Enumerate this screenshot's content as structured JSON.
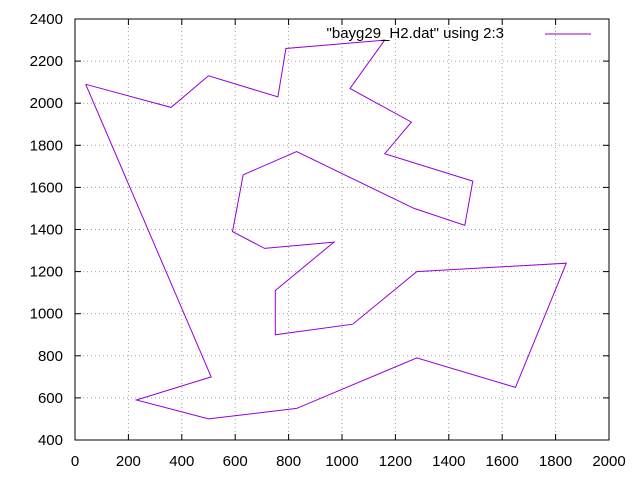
{
  "chart_data": {
    "type": "line",
    "title": "",
    "xlabel": "",
    "ylabel": "",
    "xlim": [
      0,
      2000
    ],
    "ylim": [
      400,
      2400
    ],
    "x_ticks": [
      0,
      200,
      400,
      600,
      800,
      1000,
      1200,
      1400,
      1600,
      1800,
      2000
    ],
    "y_ticks": [
      400,
      600,
      800,
      1000,
      1200,
      1400,
      1600,
      1800,
      2000,
      2200,
      2400
    ],
    "x_tick_labels": [
      "0",
      "200",
      "400",
      "600",
      "800",
      "1000",
      "1200",
      "1400",
      "1600",
      "1800",
      "2000"
    ],
    "y_tick_labels": [
      "400",
      "600",
      "800",
      "1000",
      "1200",
      "1400",
      "1600",
      "1800",
      "2000",
      "2200",
      "2400"
    ],
    "grid": true,
    "legend_position": "top-right",
    "series": [
      {
        "name": "\"bayg29_H2.dat\" using 2:3",
        "color": "#9400d3",
        "x": [
          40,
          360,
          500,
          760,
          790,
          1160,
          1030,
          1260,
          1160,
          1490,
          1460,
          1270,
          830,
          630,
          590,
          710,
          970,
          750,
          750,
          1040,
          1280,
          1840,
          1650,
          1280,
          830,
          500,
          230,
          510,
          40
        ],
        "y": [
          2090,
          1980,
          2130,
          2030,
          2260,
          2300,
          2070,
          1910,
          1760,
          1630,
          1420,
          1500,
          1770,
          1660,
          1390,
          1310,
          1340,
          1110,
          900,
          950,
          1200,
          1240,
          650,
          790,
          550,
          500,
          590,
          700,
          2090
        ]
      }
    ]
  }
}
